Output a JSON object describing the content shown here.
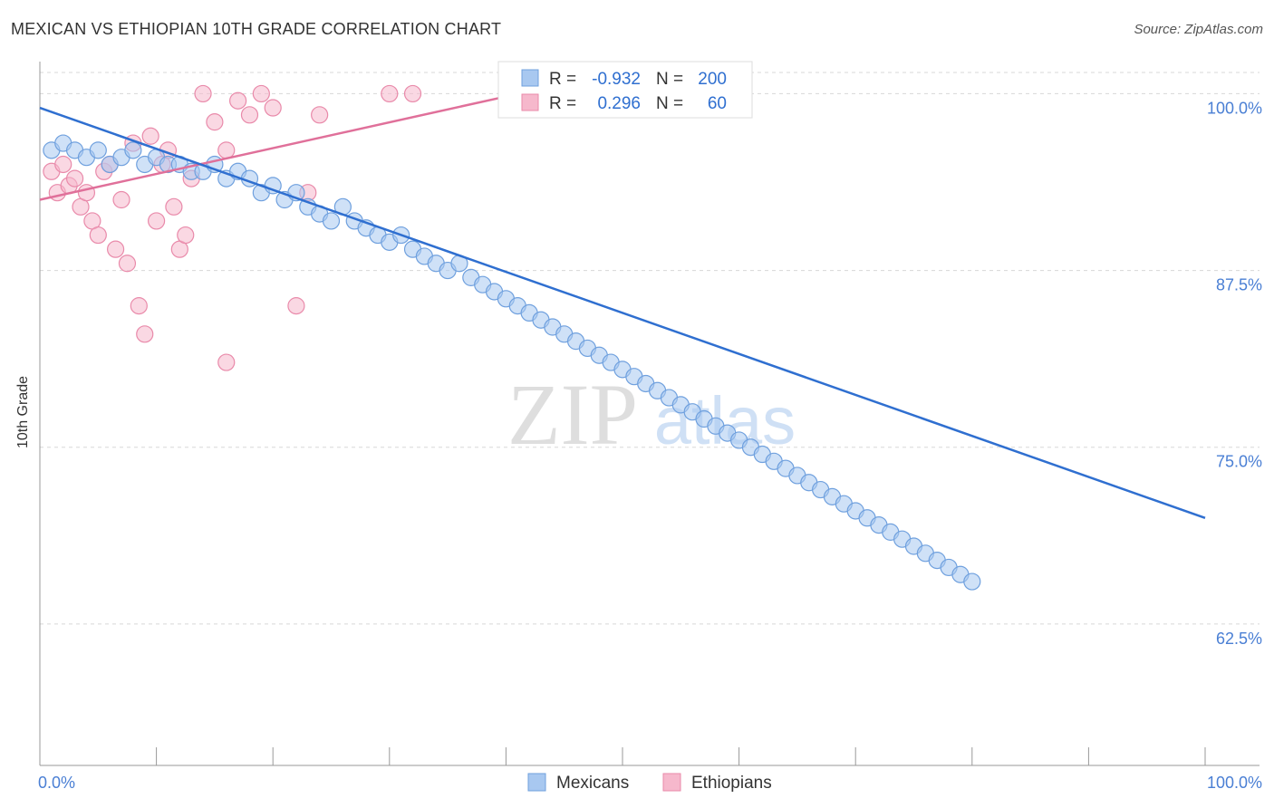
{
  "title": "MEXICAN VS ETHIOPIAN 10TH GRADE CORRELATION CHART",
  "source": "Source: ZipAtlas.com",
  "watermark": {
    "zip": "ZIP",
    "atlas": "atlas"
  },
  "legend_box": {
    "rows": [
      {
        "r_label": "R =",
        "r_value": "-0.932",
        "n_label": "N =",
        "n_value": "200"
      },
      {
        "r_label": "R =",
        "r_value": "0.296",
        "n_label": "N =",
        "n_value": "60"
      }
    ]
  },
  "colors": {
    "blue_fill": "#a8c8f0",
    "blue_stroke": "#6fa0de",
    "blue_line": "#2f6fd0",
    "pink_fill": "#f6b8cc",
    "pink_stroke": "#e98aaa",
    "pink_line": "#e0709a",
    "axis_text": "#4a7fd4",
    "grid": "#d8d8d8"
  },
  "chart_data": {
    "type": "scatter",
    "title": "MEXICAN VS ETHIOPIAN 10TH GRADE CORRELATION CHART",
    "xlabel": "",
    "ylabel": "10th Grade",
    "xlim": [
      0,
      100
    ],
    "ylim": [
      52.5,
      101.5
    ],
    "x_tick_labels": [
      "0.0%",
      "100.0%"
    ],
    "y_ticks": [
      62.5,
      75.0,
      87.5,
      100.0
    ],
    "y_tick_labels": [
      "62.5%",
      "75.0%",
      "87.5%",
      "100.0%"
    ],
    "grid": true,
    "legend": "bottom-center",
    "series": [
      {
        "name": "Mexicans",
        "color": "#a8c8f0",
        "r": -0.932,
        "n": 200,
        "trend": {
          "x": [
            0,
            100
          ],
          "y": [
            99.0,
            70.0
          ]
        },
        "points": [
          [
            1,
            96
          ],
          [
            2,
            96.5
          ],
          [
            3,
            96
          ],
          [
            4,
            95.5
          ],
          [
            5,
            96
          ],
          [
            6,
            95
          ],
          [
            7,
            95.5
          ],
          [
            8,
            96
          ],
          [
            9,
            95
          ],
          [
            10,
            95.5
          ],
          [
            11,
            95
          ],
          [
            12,
            95
          ],
          [
            13,
            94.5
          ],
          [
            14,
            94.5
          ],
          [
            15,
            95
          ],
          [
            16,
            94
          ],
          [
            17,
            94.5
          ],
          [
            18,
            94
          ],
          [
            19,
            93
          ],
          [
            20,
            93.5
          ],
          [
            21,
            92.5
          ],
          [
            22,
            93
          ],
          [
            23,
            92
          ],
          [
            24,
            91.5
          ],
          [
            25,
            91
          ],
          [
            26,
            92
          ],
          [
            27,
            91
          ],
          [
            28,
            90.5
          ],
          [
            29,
            90
          ],
          [
            30,
            89.5
          ],
          [
            31,
            90
          ],
          [
            32,
            89
          ],
          [
            33,
            88.5
          ],
          [
            34,
            88
          ],
          [
            35,
            87.5
          ],
          [
            36,
            88
          ],
          [
            37,
            87
          ],
          [
            38,
            86.5
          ],
          [
            39,
            86
          ],
          [
            40,
            85.5
          ],
          [
            41,
            85
          ],
          [
            42,
            84.5
          ],
          [
            43,
            84
          ],
          [
            44,
            83.5
          ],
          [
            45,
            83
          ],
          [
            46,
            82.5
          ],
          [
            47,
            82
          ],
          [
            48,
            81.5
          ],
          [
            49,
            81
          ],
          [
            50,
            80.5
          ],
          [
            51,
            80
          ],
          [
            52,
            79.5
          ],
          [
            53,
            79
          ],
          [
            54,
            78.5
          ],
          [
            55,
            78
          ],
          [
            56,
            77.5
          ],
          [
            57,
            77
          ],
          [
            58,
            76.5
          ],
          [
            59,
            76
          ],
          [
            60,
            75.5
          ],
          [
            61,
            75
          ],
          [
            62,
            74.5
          ],
          [
            63,
            74
          ],
          [
            64,
            73.5
          ],
          [
            65,
            73
          ],
          [
            66,
            72.5
          ],
          [
            67,
            72
          ],
          [
            68,
            71.5
          ],
          [
            69,
            71
          ],
          [
            70,
            70.5
          ],
          [
            71,
            70
          ],
          [
            72,
            69.5
          ],
          [
            73,
            69
          ],
          [
            74,
            68.5
          ],
          [
            75,
            68
          ],
          [
            76,
            67.5
          ],
          [
            77,
            67
          ],
          [
            78,
            66.5
          ],
          [
            79,
            66
          ],
          [
            80,
            65.5
          ]
        ],
        "note": "Points list approximate the plotted cloud around the trend line."
      },
      {
        "name": "Ethiopians",
        "color": "#f6b8cc",
        "r": 0.296,
        "n": 60,
        "trend": {
          "x": [
            0,
            40
          ],
          "y": [
            92.5,
            99.8
          ]
        },
        "points": [
          [
            1,
            94.5
          ],
          [
            1.5,
            93
          ],
          [
            2,
            95
          ],
          [
            2.5,
            93.5
          ],
          [
            3,
            94
          ],
          [
            3.5,
            92
          ],
          [
            4,
            93
          ],
          [
            4.5,
            91
          ],
          [
            5,
            90
          ],
          [
            5.5,
            94.5
          ],
          [
            6,
            95
          ],
          [
            6.5,
            89
          ],
          [
            7,
            92.5
          ],
          [
            7.5,
            88
          ],
          [
            8,
            96.5
          ],
          [
            8.5,
            85
          ],
          [
            9,
            83
          ],
          [
            9.5,
            97
          ],
          [
            10,
            91
          ],
          [
            10.5,
            95
          ],
          [
            11,
            96
          ],
          [
            11.5,
            92
          ],
          [
            12,
            89
          ],
          [
            12.5,
            90
          ],
          [
            13,
            94
          ],
          [
            14,
            100
          ],
          [
            15,
            98
          ],
          [
            16,
            81
          ],
          [
            17,
            99.5
          ],
          [
            18,
            98.5
          ],
          [
            19,
            100
          ],
          [
            20,
            99
          ],
          [
            16,
            96
          ],
          [
            22,
            85
          ],
          [
            23,
            93
          ],
          [
            24,
            98.5
          ],
          [
            30,
            100
          ],
          [
            32,
            100
          ]
        ]
      }
    ]
  }
}
